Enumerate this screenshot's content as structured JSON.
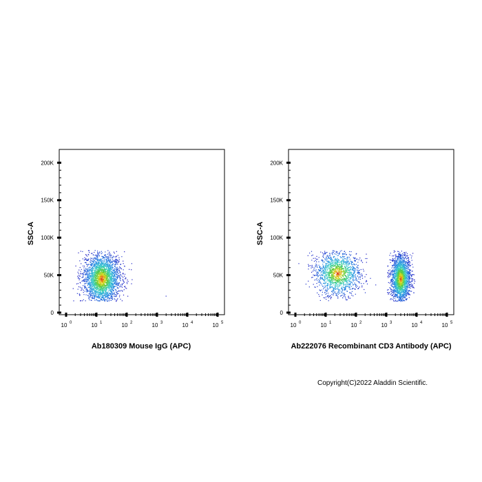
{
  "chart_data": [
    {
      "type": "scatter",
      "xlabel": "Ab180309 Mouse IgG (APC)",
      "ylabel": "SSC-A",
      "x_scale": "log",
      "xlim": [
        1,
        100000
      ],
      "ylim": [
        0,
        215000
      ],
      "x_ticks": [
        "10",
        "10",
        "10",
        "10",
        "10",
        "10"
      ],
      "x_tick_exponents": [
        "0",
        "1",
        "2",
        "3",
        "4",
        "5"
      ],
      "y_ticks": [
        "0",
        "50K",
        "100K",
        "150K",
        "200K"
      ],
      "y_tick_values": [
        0,
        50000,
        100000,
        150000,
        200000
      ],
      "grid": false,
      "populations": [
        {
          "x_center": 15,
          "x_log_spread": 0.3,
          "y_center": 45000,
          "y_spread": 17000,
          "y_range": [
            15000,
            83000
          ],
          "x_log_range": [
            0.05,
            2.4
          ],
          "count": 2600
        }
      ],
      "outliers": [
        [
          2000,
          22000
        ]
      ]
    },
    {
      "type": "scatter",
      "xlabel": "Ab222076 Recombinant CD3 Antibody (APC)",
      "ylabel": "SSC-A",
      "x_scale": "log",
      "xlim": [
        1,
        100000
      ],
      "ylim": [
        0,
        215000
      ],
      "x_ticks": [
        "10",
        "10",
        "10",
        "10",
        "10",
        "10"
      ],
      "x_tick_exponents": [
        "0",
        "1",
        "2",
        "3",
        "4",
        "5"
      ],
      "y_ticks": [
        "0",
        "50K",
        "100K",
        "150K",
        "200K"
      ],
      "y_tick_values": [
        0,
        50000,
        100000,
        150000,
        200000
      ],
      "grid": false,
      "populations": [
        {
          "x_center": 25,
          "x_log_spread": 0.38,
          "y_center": 52000,
          "y_spread": 15000,
          "y_range": [
            15000,
            83000
          ],
          "x_log_range": [
            0.1,
            2.7
          ],
          "count": 1500
        },
        {
          "x_center": 3000,
          "x_log_spread": 0.16,
          "y_center": 45000,
          "y_spread": 16000,
          "y_range": [
            15000,
            83000
          ],
          "x_log_range": [
            3.0,
            4.1
          ],
          "count": 2000
        }
      ],
      "outliers": []
    }
  ],
  "footer": {
    "copyright": "Copyright(C)2022 Aladdin Scientific."
  }
}
